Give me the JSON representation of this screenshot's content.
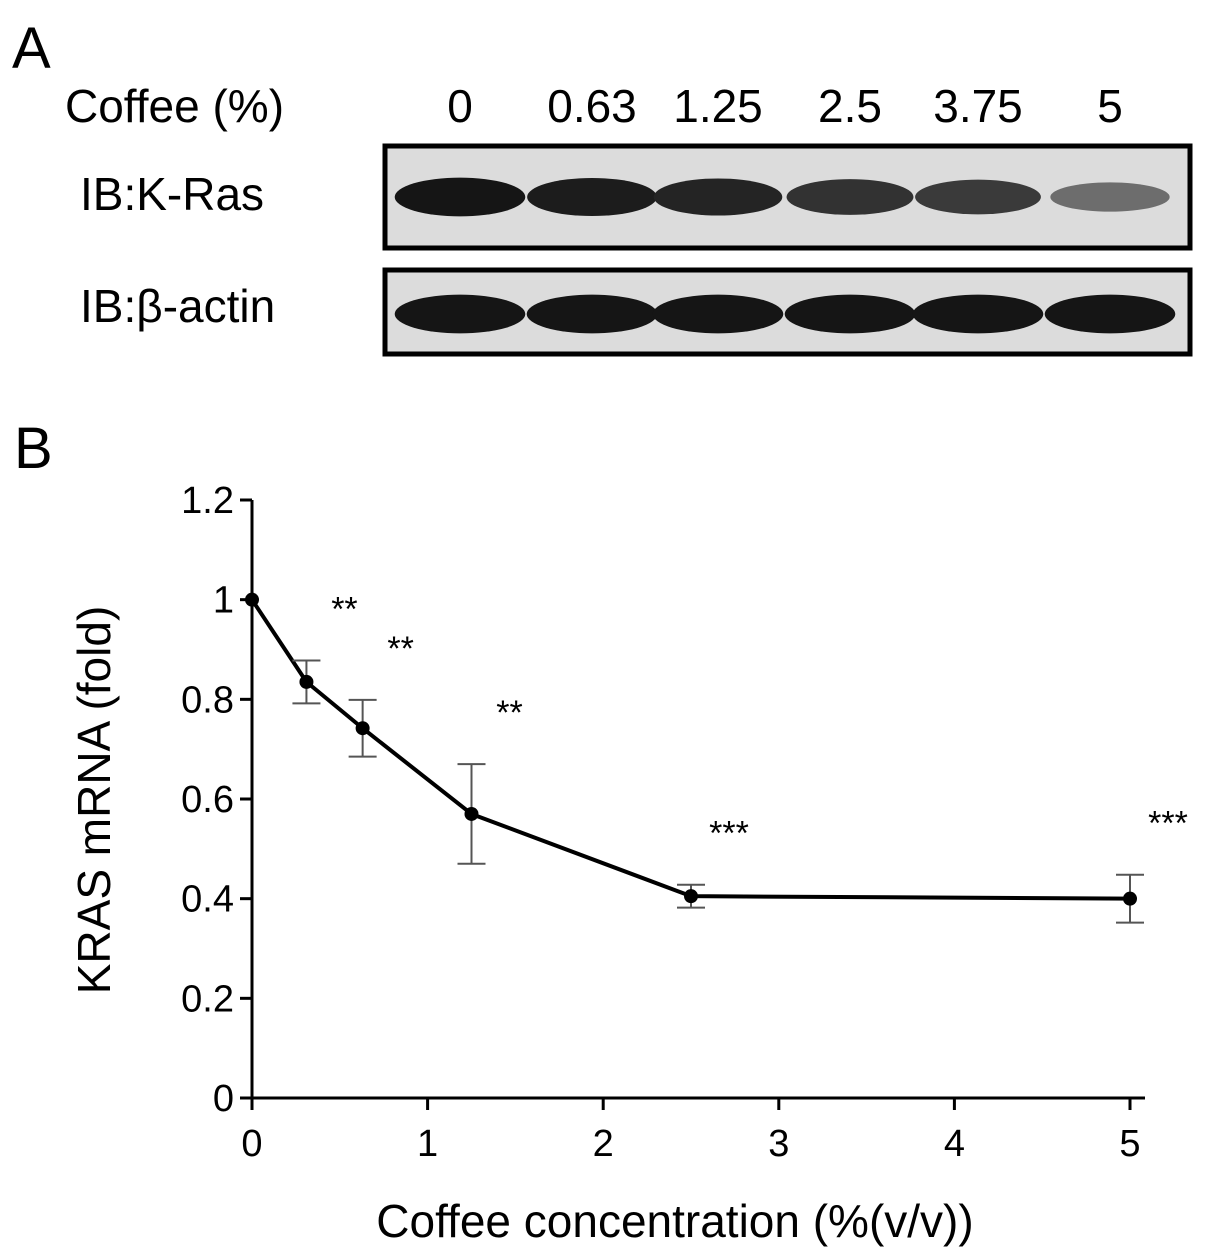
{
  "panel_a": {
    "label": "A",
    "header_label": "Coffee (%)",
    "lanes": [
      "0",
      "0.63",
      "1.25",
      "2.5",
      "3.75",
      "5"
    ],
    "blots": [
      {
        "label": "IB:K-Ras",
        "intensity": [
          0.95,
          0.92,
          0.88,
          0.82,
          0.78,
          0.55
        ]
      },
      {
        "label": "IB:β-actin",
        "intensity": [
          0.95,
          0.95,
          0.95,
          0.95,
          0.95,
          0.95
        ]
      }
    ]
  },
  "chart_data": {
    "type": "line",
    "panel_label": "B",
    "title": "",
    "xlabel": "Coffee concentration (%(v/v))",
    "ylabel": "KRAS mRNA (fold)",
    "xlim": [
      0,
      5
    ],
    "ylim": [
      0,
      1.2
    ],
    "xticks": [
      0,
      1,
      2,
      3,
      4,
      5
    ],
    "yticks": [
      0,
      0.2,
      0.4,
      0.6,
      0.8,
      1,
      1.2
    ],
    "xtick_labels": [
      "0",
      "1",
      "2",
      "3",
      "4",
      "5"
    ],
    "ytick_labels": [
      "0",
      "0.2",
      "0.4",
      "0.6",
      "0.8",
      "1",
      "1.2"
    ],
    "grid": false,
    "series": [
      {
        "x": [
          0,
          0.31,
          0.63,
          1.25,
          2.5,
          5
        ],
        "y": [
          1.0,
          0.835,
          0.742,
          0.57,
          0.405,
          0.4
        ],
        "err": [
          0,
          0.043,
          0.057,
          0.1,
          0.023,
          0.048
        ],
        "significance": [
          "",
          "**",
          "**",
          "**",
          "***",
          "***"
        ]
      }
    ]
  }
}
